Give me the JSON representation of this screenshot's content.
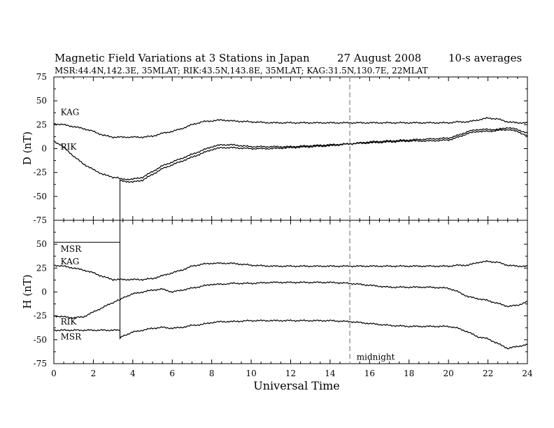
{
  "header": {
    "title": "Magnetic Field Variations at 3 Stations in Japan",
    "date": "27 August  2008",
    "averaging": "10-s averages",
    "stations": "MSR:44.4N,142.3E, 35MLAT;  RIK:43.5N,143.8E, 35MLAT;  KAG:31.5N,130.7E, 22MLAT"
  },
  "chart_data": [
    {
      "type": "line",
      "panel": "top",
      "ylabel": "D (nT)",
      "ylim": [
        -75,
        75
      ],
      "yticks": [
        "75",
        "50",
        "25",
        "0",
        "-25",
        "-50",
        "-75"
      ],
      "xlim": [
        0,
        24
      ],
      "grid": false,
      "series": [
        {
          "name": "KAG",
          "x": [
            0,
            0.5,
            1,
            1.5,
            2,
            2.5,
            3,
            3.5,
            4,
            4.5,
            5,
            5.5,
            6,
            6.5,
            7,
            7.5,
            8,
            8.5,
            9,
            10,
            11,
            12,
            13,
            14,
            15,
            16,
            17,
            18,
            19,
            20,
            20.5,
            21,
            21.5,
            22,
            22.5,
            23,
            23.5,
            24
          ],
          "y": [
            26,
            25,
            23,
            21,
            18,
            14,
            12,
            12,
            12,
            12,
            13,
            16,
            18,
            21,
            25,
            28,
            29,
            30,
            29,
            28,
            27,
            27,
            27,
            27,
            27,
            27,
            27,
            27,
            27,
            27,
            28,
            28,
            30,
            32,
            31,
            28,
            27,
            27
          ]
        },
        {
          "name": "RIK",
          "x": [
            0,
            0.3,
            0.6,
            1,
            1.5,
            2,
            2.5,
            3,
            3.35,
            3.5,
            4,
            4.5,
            5,
            5.5,
            6,
            6.5,
            7,
            7.5,
            8,
            8.5,
            9,
            10,
            11,
            12,
            13,
            14,
            15,
            16,
            17,
            18,
            19,
            20,
            20.5,
            21,
            21.5,
            22,
            22.5,
            23,
            23.5,
            24
          ],
          "y": [
            8,
            4,
            0,
            -8,
            -16,
            -22,
            -27,
            -30,
            -31,
            -32,
            -32,
            -30,
            -24,
            -18,
            -14,
            -10,
            -6,
            -2,
            2,
            4,
            4,
            2,
            2,
            2,
            3,
            4,
            5,
            7,
            8,
            9,
            10,
            11,
            14,
            18,
            20,
            20,
            20,
            22,
            20,
            16
          ]
        },
        {
          "name": "MSR",
          "x": [
            3.35,
            3.5,
            4,
            4.5,
            5,
            5.5,
            6,
            6.5,
            7,
            7.5,
            8,
            8.5,
            9,
            10,
            11,
            12,
            13,
            14,
            15,
            16,
            17,
            18,
            19,
            20,
            20.5,
            21,
            21.5,
            22,
            22.5,
            23,
            23.5,
            24
          ],
          "y": [
            -33,
            -34,
            -35,
            -33,
            -27,
            -21,
            -17,
            -13,
            -9,
            -5,
            -1,
            1,
            1,
            0,
            0,
            1,
            2,
            3,
            5,
            6,
            7,
            8,
            8,
            9,
            12,
            16,
            18,
            18,
            19,
            20,
            18,
            13
          ]
        }
      ],
      "annotations": [
        {
          "text": "KAG",
          "x": 0.2,
          "y": 38
        },
        {
          "text": "RIK",
          "x": 0.2,
          "y": 2
        }
      ]
    },
    {
      "type": "line",
      "panel": "bottom",
      "ylabel": "H (nT)",
      "ylim": [
        -75,
        75
      ],
      "yticks": [
        "50",
        "25",
        "0",
        "-25",
        "-50",
        "-75"
      ],
      "xlim": [
        0,
        24
      ],
      "xlabel": "Universal Time",
      "xticks": [
        "0",
        "2",
        "4",
        "6",
        "8",
        "10",
        "12",
        "14",
        "16",
        "18",
        "20",
        "22",
        "24"
      ],
      "grid": false,
      "series": [
        {
          "name": "KAG",
          "x": [
            0,
            0.5,
            1,
            1.5,
            2,
            2.5,
            3,
            3.5,
            4,
            4.5,
            5,
            5.5,
            6,
            6.5,
            7,
            7.5,
            8,
            8.5,
            9,
            10,
            11,
            12,
            13,
            14,
            15,
            16,
            17,
            18,
            19,
            20,
            20.5,
            21,
            21.5,
            22,
            22.5,
            23,
            23.5,
            24
          ],
          "y": [
            28,
            27,
            25,
            23,
            20,
            16,
            13,
            13,
            13,
            13,
            14,
            17,
            20,
            23,
            27,
            29,
            30,
            30,
            30,
            28,
            27,
            27,
            27,
            27,
            27,
            27,
            27,
            27,
            27,
            27,
            28,
            28,
            31,
            32,
            31,
            28,
            27,
            27
          ]
        },
        {
          "name": "RIK",
          "x": [
            0,
            0.5,
            1,
            1.5,
            2,
            2.5,
            3,
            3.35,
            3.5,
            4,
            4.5,
            5,
            5.5,
            6,
            6.5,
            7,
            7.5,
            8,
            8.5,
            9,
            10,
            11,
            12,
            13,
            14,
            15,
            16,
            17,
            18,
            19,
            20,
            20.5,
            21,
            21.5,
            22,
            22.5,
            23,
            23.5,
            24
          ],
          "y": [
            -25,
            -26,
            -27,
            -26,
            -21,
            -16,
            -11,
            -8,
            -6,
            -2,
            0,
            2,
            3,
            0,
            2,
            4,
            6,
            8,
            8,
            9,
            9,
            10,
            10,
            10,
            10,
            9,
            7,
            5,
            5,
            5,
            4,
            0,
            -5,
            -7,
            -9,
            -12,
            -15,
            -14,
            -10
          ]
        },
        {
          "name": "MSR",
          "x": [
            0,
            3.35,
            3.35,
            3.5,
            4,
            4.5,
            5,
            5.5,
            6,
            6.5,
            7,
            7.5,
            8,
            8.5,
            9,
            10,
            11,
            12,
            13,
            14,
            15,
            16,
            17,
            18,
            19,
            20,
            20.5,
            21,
            21.5,
            22,
            22.5,
            23,
            23.5,
            24
          ],
          "y": [
            -40,
            -40,
            -48,
            -46,
            -42,
            -40,
            -38,
            -37,
            -38,
            -37,
            -35,
            -34,
            -32,
            -31,
            -31,
            -30,
            -30,
            -30,
            -30,
            -30,
            -31,
            -33,
            -35,
            -36,
            -36,
            -36,
            -38,
            -42,
            -47,
            -49,
            -54,
            -59,
            -57,
            -55
          ]
        }
      ],
      "baselines": [
        {
          "name": "MSR",
          "y": 52,
          "x_end": 3.35
        }
      ],
      "annotations": [
        {
          "text": "MSR",
          "x": 0.2,
          "y": 45
        },
        {
          "text": "KAG",
          "x": 0.2,
          "y": 32
        },
        {
          "text": "RIK",
          "x": 0.2,
          "y": -31
        },
        {
          "text": "MSR",
          "x": 0.2,
          "y": -47
        },
        {
          "text": "midnight",
          "x": 15.2,
          "y": -68
        }
      ]
    }
  ],
  "midnight_ut": 15,
  "colors": {
    "line": "#000000",
    "midnight": "#999999"
  }
}
